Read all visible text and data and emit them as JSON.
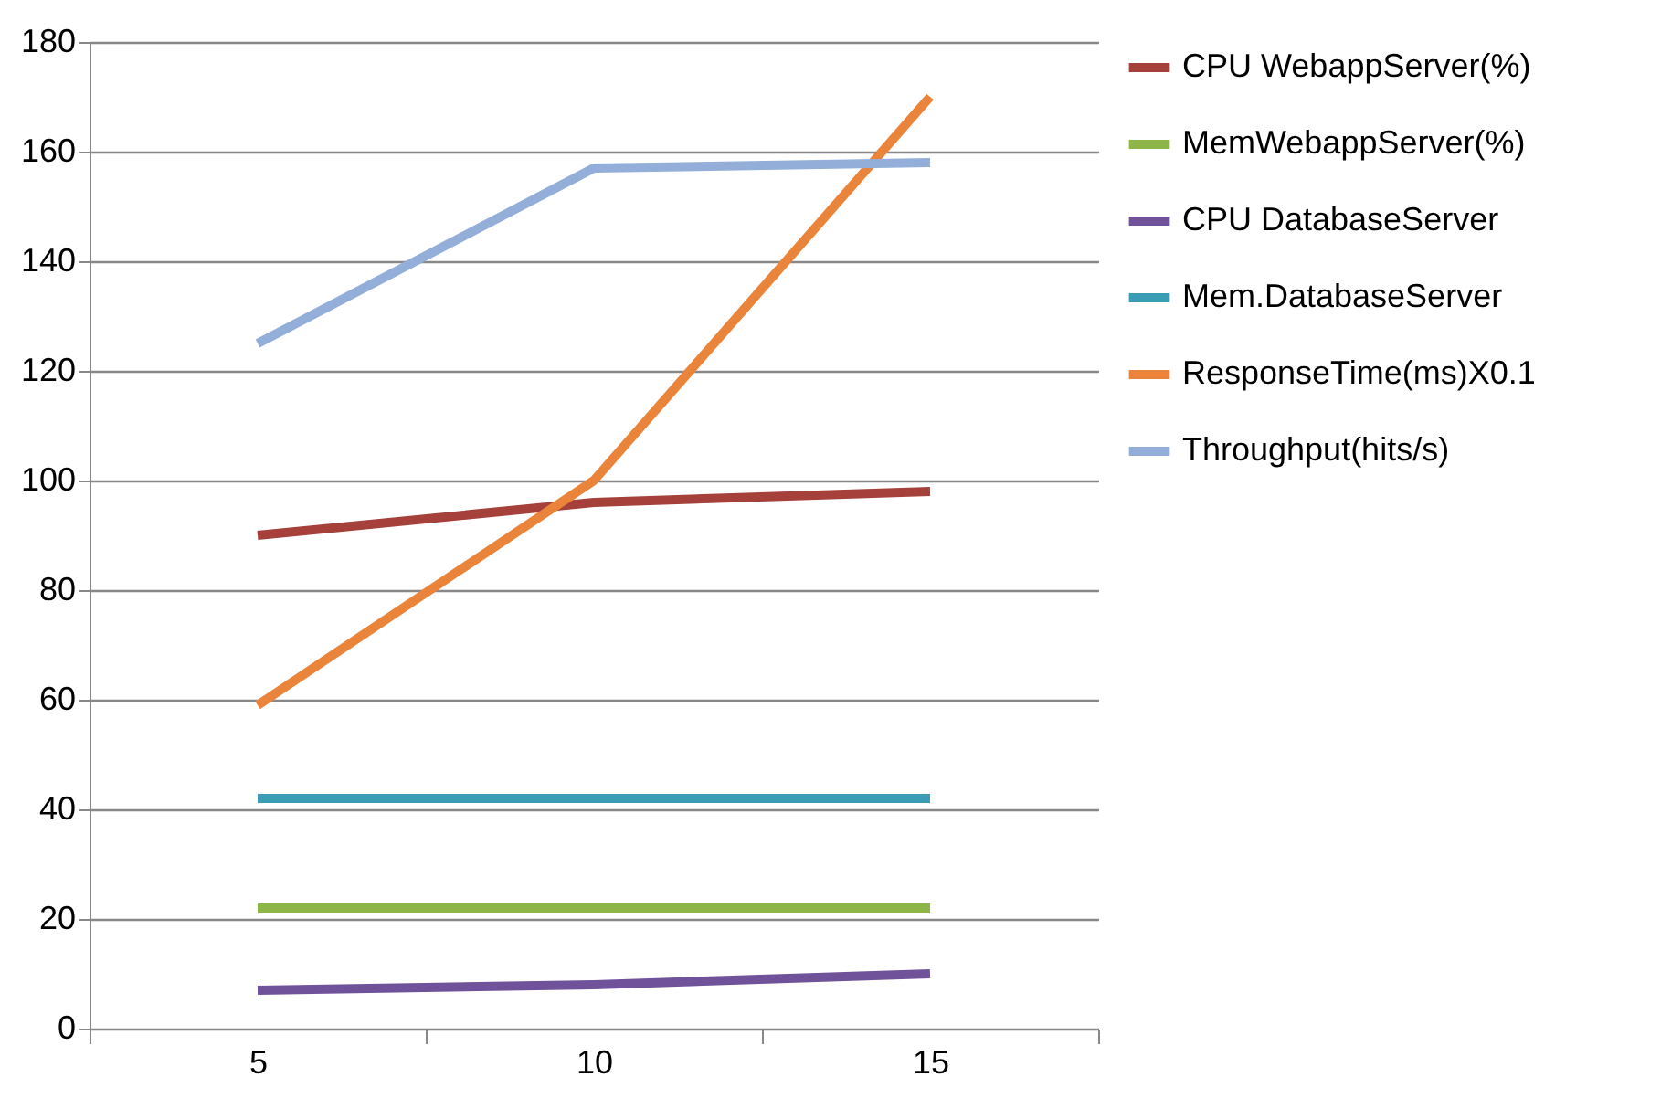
{
  "chart_data": {
    "type": "line",
    "categories": [
      "5",
      "10",
      "15"
    ],
    "series": [
      {
        "name": "CPU WebappServer(%)",
        "color": "#a5403b",
        "values": [
          90,
          96,
          98
        ]
      },
      {
        "name": "MemWebappServer(%)",
        "color": "#8db548",
        "values": [
          22,
          22,
          22
        ]
      },
      {
        "name": "CPU DatabaseServer",
        "color": "#70529a",
        "values": [
          7,
          8,
          10
        ]
      },
      {
        "name": "Mem.DatabaseServer",
        "color": "#3b9cb5",
        "values": [
          42,
          42,
          42
        ]
      },
      {
        "name": "ResponseTime(ms)X0.1",
        "color": "#ea843a",
        "values": [
          59,
          100,
          170
        ]
      },
      {
        "name": "Throughput(hits/s)",
        "color": "#93aed8",
        "values": [
          125,
          157,
          158
        ]
      }
    ],
    "ylim": [
      0,
      180
    ],
    "yticks": [
      0,
      20,
      40,
      60,
      80,
      100,
      120,
      140,
      160,
      180
    ],
    "grid": "y",
    "legend": "right",
    "marker": "none",
    "line_style": "solid"
  }
}
